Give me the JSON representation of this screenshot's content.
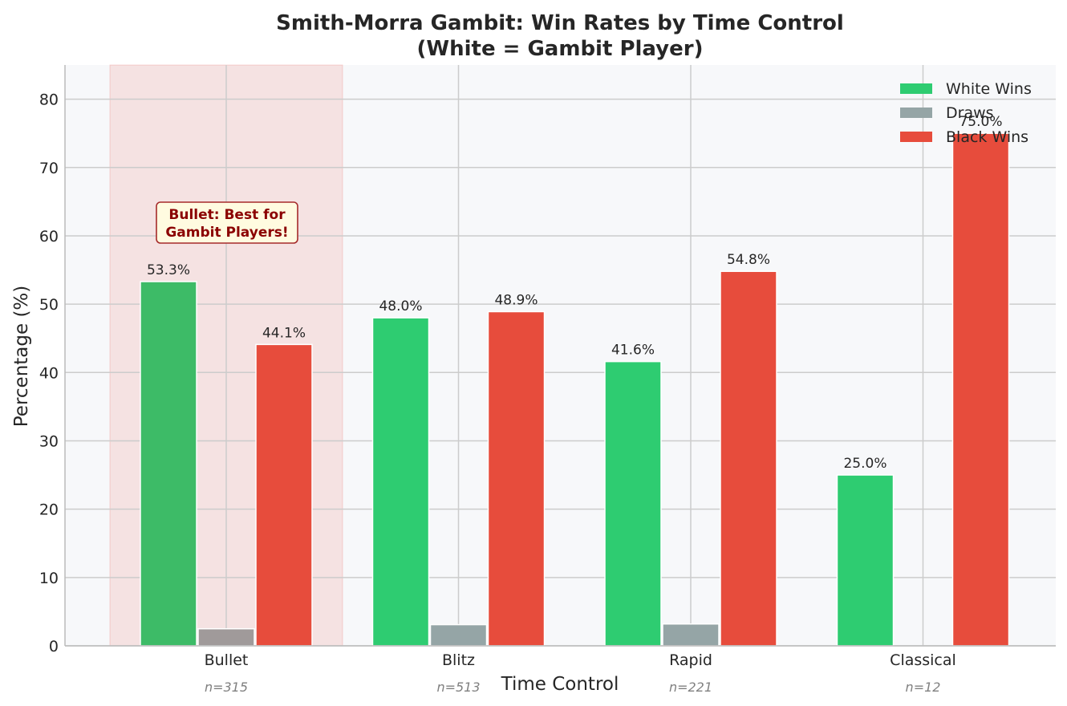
{
  "chart_data": {
    "type": "bar",
    "title_line1": "Smith-Morra Gambit: Win Rates by Time Control",
    "title_line2": "(White = Gambit Player)",
    "xlabel": "Time Control",
    "ylabel": "Percentage (%)",
    "ylim": [
      0,
      85
    ],
    "yticks": [
      0,
      10,
      20,
      30,
      40,
      50,
      60,
      70,
      80
    ],
    "grid": true,
    "legend_position": "top-right",
    "categories": [
      "Bullet",
      "Blitz",
      "Rapid",
      "Classical"
    ],
    "sample_sizes": [
      "n=315",
      "n=513",
      "n=221",
      "n=12"
    ],
    "series": [
      {
        "name": "White Wins",
        "color": "#2ecc71",
        "values": [
          53.3,
          48.0,
          41.6,
          25.0
        ],
        "labels": [
          "53.3%",
          "48.0%",
          "41.6%",
          "25.0%"
        ]
      },
      {
        "name": "Draws",
        "color": "#95a5a6",
        "values": [
          2.5,
          3.1,
          3.2,
          0.0
        ],
        "labels": [
          "",
          "",
          "",
          ""
        ]
      },
      {
        "name": "Black Wins",
        "color": "#e74c3c",
        "values": [
          44.1,
          48.9,
          54.8,
          75.0
        ],
        "labels": [
          "44.1%",
          "48.9%",
          "54.8%",
          "75.0%"
        ]
      }
    ],
    "highlight": {
      "category": "Bullet",
      "color": "#e74c3c",
      "first_bar_color": "#3dbb67",
      "draw_bar_color": "#a09a9a",
      "annotation_line1": "Bullet: Best for",
      "annotation_line2": "Gambit Players!"
    },
    "background": "#f7f8fa",
    "gridcolor": "#cccccc"
  }
}
